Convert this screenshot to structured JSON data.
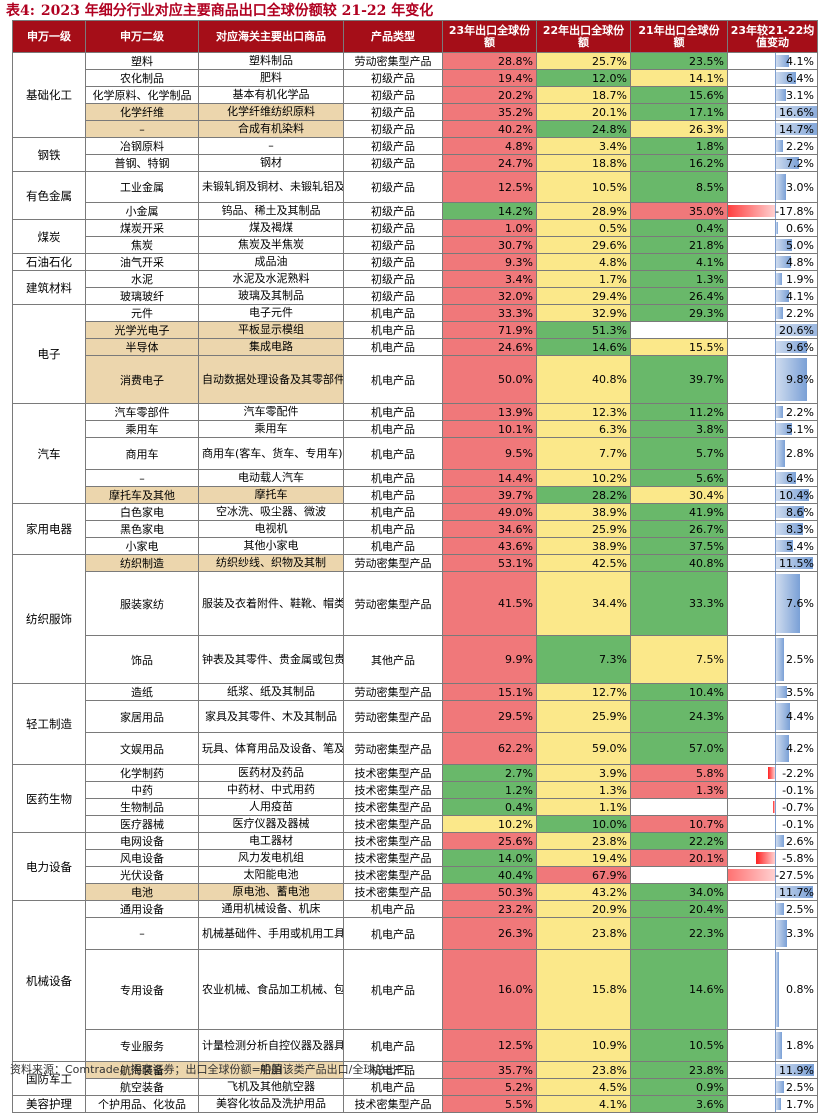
{
  "title": {
    "label": "表4:",
    "text": "2023 年细分行业对应主要商品出口全球份额较 21-22 年变化"
  },
  "headers": [
    "申万一级",
    "申万二级",
    "对应海关主要出口商品",
    "产品类型",
    "23年出口全球份额",
    "22年出口全球份额",
    "21年出口全球份额",
    "23年较21-22均值变动"
  ],
  "colors": {
    "red": "#f0787a",
    "yellow": "#fbe88a",
    "green": "#69b86a",
    "tan": "#ecd6ad",
    "header": "#a50e18",
    "bar_pos": "#7aa0d6",
    "bar_neg": "#ff2020"
  },
  "rows": [
    {
      "l1": "基础化工",
      "l1span": 5,
      "l2": "塑料",
      "cus": "塑料制品",
      "type": "劳动密集型产品",
      "v23": "28.8%",
      "v22": "25.7%",
      "v21": "23.5%",
      "chg": "4.1%",
      "c": 4.1,
      "k": [
        "r",
        "y",
        "g"
      ],
      "h": 17
    },
    {
      "l2": "农化制品",
      "cus": "肥料",
      "type": "初级产品",
      "v23": "19.4%",
      "v22": "12.0%",
      "v21": "14.1%",
      "chg": "6.4%",
      "c": 6.4,
      "k": [
        "r",
        "g",
        "y"
      ],
      "h": 16
    },
    {
      "l2": "化学原料、化学制品",
      "cus": "基本有机化学品",
      "type": "初级产品",
      "v23": "20.2%",
      "v22": "18.7%",
      "v21": "15.6%",
      "chg": "3.1%",
      "c": 3.1,
      "k": [
        "r",
        "y",
        "g"
      ],
      "h": 16
    },
    {
      "l2": "化学纤维",
      "cus": "化学纤维纺织原料",
      "type": "初级产品",
      "v23": "35.2%",
      "v22": "20.1%",
      "v21": "17.1%",
      "chg": "16.6%",
      "c": 16.6,
      "k": [
        "r",
        "y",
        "g"
      ],
      "h": 17,
      "tan": true
    },
    {
      "l2": "–",
      "cus": "合成有机染料",
      "type": "初级产品",
      "v23": "40.2%",
      "v22": "24.8%",
      "v21": "26.3%",
      "chg": "14.7%",
      "c": 14.7,
      "k": [
        "r",
        "g",
        "y"
      ],
      "h": 16,
      "tan": true
    },
    {
      "l1": "钢铁",
      "l1span": 2,
      "l2": "冶钢原料",
      "cus": "–",
      "type": "初级产品",
      "v23": "4.8%",
      "v22": "3.4%",
      "v21": "1.8%",
      "chg": "2.2%",
      "c": 2.2,
      "k": [
        "r",
        "y",
        "g"
      ],
      "h": 16
    },
    {
      "l2": "普钢、特钢",
      "cus": "钢材",
      "type": "初级产品",
      "v23": "24.7%",
      "v22": "18.8%",
      "v21": "16.2%",
      "chg": "7.2%",
      "c": 7.2,
      "k": [
        "r",
        "y",
        "g"
      ],
      "h": 16
    },
    {
      "l1": "有色金属",
      "l1span": 2,
      "l2": "工业金属",
      "cus": "未锻轧铜及铜材、未锻轧铝及铝材",
      "type": "初级产品",
      "v23": "12.5%",
      "v22": "10.5%",
      "v21": "8.5%",
      "chg": "3.0%",
      "c": 3.0,
      "k": [
        "r",
        "y",
        "g"
      ],
      "h": 31
    },
    {
      "l2": "小金属",
      "cus": "钨品、稀土及其制品",
      "type": "初级产品",
      "v23": "14.2%",
      "v22": "28.9%",
      "v21": "35.0%",
      "chg": "-17.8%",
      "c": -17.8,
      "k": [
        "g",
        "y",
        "r"
      ],
      "h": 16
    },
    {
      "l1": "煤炭",
      "l1span": 2,
      "l2": "煤炭开采",
      "cus": "煤及褐煤",
      "type": "初级产品",
      "v23": "1.0%",
      "v22": "0.5%",
      "v21": "0.4%",
      "chg": "0.6%",
      "c": 0.6,
      "k": [
        "r",
        "y",
        "g"
      ],
      "h": 16
    },
    {
      "l2": "焦炭",
      "cus": "焦炭及半焦炭",
      "type": "初级产品",
      "v23": "30.7%",
      "v22": "29.6%",
      "v21": "21.8%",
      "chg": "5.0%",
      "c": 5.0,
      "k": [
        "r",
        "y",
        "g"
      ],
      "h": 16
    },
    {
      "l1": "石油石化",
      "l1span": 1,
      "l2": "油气开采",
      "cus": "成品油",
      "type": "初级产品",
      "v23": "9.3%",
      "v22": "4.8%",
      "v21": "4.1%",
      "chg": "4.8%",
      "c": 4.8,
      "k": [
        "r",
        "y",
        "g"
      ],
      "h": 16
    },
    {
      "l1": "建筑材料",
      "l1span": 2,
      "l2": "水泥",
      "cus": "水泥及水泥熟料",
      "type": "初级产品",
      "v23": "3.4%",
      "v22": "1.7%",
      "v21": "1.3%",
      "chg": "1.9%",
      "c": 1.9,
      "k": [
        "r",
        "y",
        "g"
      ],
      "h": 16
    },
    {
      "l2": "玻璃玻纤",
      "cus": "玻璃及其制品",
      "type": "初级产品",
      "v23": "32.0%",
      "v22": "29.4%",
      "v21": "26.4%",
      "chg": "4.1%",
      "c": 4.1,
      "k": [
        "r",
        "y",
        "g"
      ],
      "h": 16
    },
    {
      "l1": "电子",
      "l1span": 4,
      "l2": "元件",
      "cus": "电子元件",
      "type": "机电产品",
      "v23": "33.3%",
      "v22": "32.9%",
      "v21": "29.3%",
      "chg": "2.2%",
      "c": 2.2,
      "k": [
        "r",
        "y",
        "g"
      ],
      "h": 16
    },
    {
      "l2": "光学光电子",
      "cus": "平板显示模组",
      "type": "机电产品",
      "v23": "71.9%",
      "v22": "51.3%",
      "v21": "",
      "chg": "20.6%",
      "c": 20.6,
      "k": [
        "r",
        "g",
        "w"
      ],
      "h": 16,
      "tan": true
    },
    {
      "l2": "半导体",
      "cus": "集成电路",
      "type": "机电产品",
      "v23": "24.6%",
      "v22": "14.6%",
      "v21": "15.5%",
      "chg": "9.6%",
      "c": 9.6,
      "k": [
        "r",
        "g",
        "y"
      ],
      "h": 16,
      "tan": true
    },
    {
      "l2": "消费电子",
      "cus": "自动数据处理设备及其零部件、手机、音视频设备及其零件",
      "type": "机电产品",
      "v23": "50.0%",
      "v22": "40.8%",
      "v21": "39.7%",
      "chg": "9.8%",
      "c": 9.8,
      "k": [
        "r",
        "y",
        "g"
      ],
      "h": 48,
      "tan": true
    },
    {
      "l1": "汽车",
      "l1span": 5,
      "l2": "汽车零部件",
      "cus": "汽车零配件",
      "type": "机电产品",
      "v23": "13.9%",
      "v22": "12.3%",
      "v21": "11.2%",
      "chg": "2.2%",
      "c": 2.2,
      "k": [
        "r",
        "y",
        "g"
      ],
      "h": 16
    },
    {
      "l2": "乘用车",
      "cus": "乘用车",
      "type": "机电产品",
      "v23": "10.1%",
      "v22": "6.3%",
      "v21": "3.8%",
      "chg": "5.1%",
      "c": 5.1,
      "k": [
        "r",
        "y",
        "g"
      ],
      "h": 16
    },
    {
      "l2": "商用车",
      "cus": "商用车(客车、货车、专用车)",
      "type": "机电产品",
      "v23": "9.5%",
      "v22": "7.7%",
      "v21": "5.7%",
      "chg": "2.8%",
      "c": 2.8,
      "k": [
        "r",
        "y",
        "g"
      ],
      "h": 32
    },
    {
      "l2": "–",
      "cus": "电动载人汽车",
      "type": "机电产品",
      "v23": "14.4%",
      "v22": "10.2%",
      "v21": "5.6%",
      "chg": "6.4%",
      "c": 6.4,
      "k": [
        "r",
        "y",
        "g"
      ],
      "h": 16
    },
    {
      "l2": "摩托车及其他",
      "cus": "摩托车",
      "type": "机电产品",
      "v23": "39.7%",
      "v22": "28.2%",
      "v21": "30.4%",
      "chg": "10.4%",
      "c": 10.4,
      "k": [
        "r",
        "g",
        "y"
      ],
      "h": 16,
      "tan": true
    },
    {
      "l1": "家用电器",
      "l1span": 3,
      "l2": "白色家电",
      "cus": "空冰洗、吸尘器、微波",
      "type": "机电产品",
      "v23": "49.0%",
      "v22": "38.9%",
      "v21": "41.9%",
      "chg": "8.6%",
      "c": 8.6,
      "k": [
        "r",
        "y",
        "g"
      ],
      "h": 16
    },
    {
      "l2": "黑色家电",
      "cus": "电视机",
      "type": "机电产品",
      "v23": "34.6%",
      "v22": "25.9%",
      "v21": "26.7%",
      "chg": "8.3%",
      "c": 8.3,
      "k": [
        "r",
        "y",
        "g"
      ],
      "h": 16
    },
    {
      "l2": "小家电",
      "cus": "其他小家电",
      "type": "机电产品",
      "v23": "43.6%",
      "v22": "38.9%",
      "v21": "37.5%",
      "chg": "5.4%",
      "c": 5.4,
      "k": [
        "r",
        "y",
        "g"
      ],
      "h": 16
    },
    {
      "l1": "纺织服饰",
      "l1span": 3,
      "l2": "纺织制造",
      "cus": "纺织纱线、织物及其制",
      "type": "劳动密集型产品",
      "v23": "53.1%",
      "v22": "42.5%",
      "v21": "40.8%",
      "chg": "11.5%",
      "c": 11.5,
      "k": [
        "r",
        "y",
        "g"
      ],
      "h": 16,
      "tan": true
    },
    {
      "l2": "服装家纺",
      "cus": "服装及衣着附件、鞋靴、帽类、皮革毛皮及其制品、箱包及类似容器",
      "type": "劳动密集型产品",
      "v23": "41.5%",
      "v22": "34.4%",
      "v21": "33.3%",
      "chg": "7.6%",
      "c": 7.6,
      "k": [
        "r",
        "y",
        "g"
      ],
      "h": 64
    },
    {
      "l2": "饰品",
      "cus": "钟表及其零件、贵金属或包贵金属的首饰、珍珠、宝石及半宝石",
      "type": "其他产品",
      "v23": "9.9%",
      "v22": "7.3%",
      "v21": "7.5%",
      "chg": "2.5%",
      "c": 2.5,
      "k": [
        "r",
        "g",
        "y"
      ],
      "h": 48
    },
    {
      "l1": "轻工制造",
      "l1span": 3,
      "l2": "造纸",
      "cus": "纸浆、纸及其制品",
      "type": "劳动密集型产品",
      "v23": "15.1%",
      "v22": "12.7%",
      "v21": "10.4%",
      "chg": "3.5%",
      "c": 3.5,
      "k": [
        "r",
        "y",
        "g"
      ],
      "h": 16
    },
    {
      "l2": "家居用品",
      "cus": "家具及其零件、木及其制品",
      "type": "劳动密集型产品",
      "v23": "29.5%",
      "v22": "25.9%",
      "v21": "24.3%",
      "chg": "4.4%",
      "c": 4.4,
      "k": [
        "r",
        "y",
        "g"
      ],
      "h": 32
    },
    {
      "l2": "文娱用品",
      "cus": "玩具、体育用品及设备、笔及其零件",
      "type": "劳动密集型产品",
      "v23": "62.2%",
      "v22": "59.0%",
      "v21": "57.0%",
      "chg": "4.2%",
      "c": 4.2,
      "k": [
        "r",
        "y",
        "g"
      ],
      "h": 32
    },
    {
      "l1": "医药生物",
      "l1span": 4,
      "l2": "化学制药",
      "cus": "医药材及药品",
      "type": "技术密集型产品",
      "v23": "2.7%",
      "v22": "3.9%",
      "v21": "5.8%",
      "chg": "-2.2%",
      "c": -2.2,
      "k": [
        "g",
        "y",
        "r"
      ],
      "h": 16
    },
    {
      "l2": "中药",
      "cus": "中药材、中式用药",
      "type": "技术密集型产品",
      "v23": "1.2%",
      "v22": "1.3%",
      "v21": "1.3%",
      "chg": "-0.1%",
      "c": -0.1,
      "k": [
        "g",
        "y",
        "r"
      ],
      "h": 16
    },
    {
      "l2": "生物制品",
      "cus": "人用疫苗",
      "type": "技术密集型产品",
      "v23": "0.4%",
      "v22": "1.1%",
      "v21": "",
      "chg": "-0.7%",
      "c": -0.7,
      "k": [
        "g",
        "y",
        "w"
      ],
      "h": 16
    },
    {
      "l2": "医疗器械",
      "cus": "医疗仪器及器械",
      "type": "技术密集型产品",
      "v23": "10.2%",
      "v22": "10.0%",
      "v21": "10.7%",
      "chg": "-0.1%",
      "c": -0.1,
      "k": [
        "y",
        "g",
        "r"
      ],
      "h": 16
    },
    {
      "l1": "电力设备",
      "l1span": 4,
      "l2": "电网设备",
      "cus": "电工器材",
      "type": "技术密集型产品",
      "v23": "25.6%",
      "v22": "23.8%",
      "v21": "22.2%",
      "chg": "2.6%",
      "c": 2.6,
      "k": [
        "r",
        "y",
        "g"
      ],
      "h": 16
    },
    {
      "l2": "风电设备",
      "cus": "风力发电机组",
      "type": "技术密集型产品",
      "v23": "14.0%",
      "v22": "19.4%",
      "v21": "20.1%",
      "chg": "-5.8%",
      "c": -5.8,
      "k": [
        "g",
        "y",
        "r"
      ],
      "h": 16
    },
    {
      "l2": "光伏设备",
      "cus": "太阳能电池",
      "type": "技术密集型产品",
      "v23": "40.4%",
      "v22": "67.9%",
      "v21": "",
      "chg": "-27.5%",
      "c": -27.5,
      "k": [
        "g",
        "r",
        "w"
      ],
      "h": 16
    },
    {
      "l2": "电池",
      "cus": "原电池、蓄电池",
      "type": "技术密集型产品",
      "v23": "50.3%",
      "v22": "43.2%",
      "v21": "34.0%",
      "chg": "11.7%",
      "c": 11.7,
      "k": [
        "r",
        "y",
        "g"
      ],
      "h": 16,
      "tan": true
    },
    {
      "l1": "机械设备",
      "l1span": 4,
      "l2": "通用设备",
      "cus": "通用机械设备、机床",
      "type": "机电产品",
      "v23": "23.2%",
      "v22": "20.9%",
      "v21": "20.4%",
      "chg": "2.5%",
      "c": 2.5,
      "k": [
        "r",
        "y",
        "g"
      ],
      "h": 16
    },
    {
      "l2": "–",
      "cus": "机械基础件、手用或机用工具、机床",
      "type": "机电产品",
      "v23": "26.3%",
      "v22": "23.8%",
      "v21": "22.3%",
      "chg": "3.3%",
      "c": 3.3,
      "k": [
        "r",
        "y",
        "g"
      ],
      "h": 32
    },
    {
      "l2": "专用设备",
      "cus": "农业机械、食品加工机械、包装机械、印刷装订机械及其零件、纺织机械及其零件、缝制机械及其零件",
      "type": "机电产品",
      "v23": "16.0%",
      "v22": "15.8%",
      "v21": "14.6%",
      "chg": "0.8%",
      "c": 0.8,
      "k": [
        "r",
        "y",
        "g"
      ],
      "h": 80
    },
    {
      "l2": "专业服务",
      "cus": "计量检测分析自控仪器及器具",
      "type": "机电产品",
      "v23": "12.5%",
      "v22": "10.9%",
      "v21": "10.5%",
      "chg": "1.8%",
      "c": 1.8,
      "k": [
        "r",
        "y",
        "g"
      ],
      "h": 32
    },
    {
      "l1": "国防军工",
      "l1span": 2,
      "l2": "航海装备",
      "cus": "船舶",
      "type": "机电产品",
      "v23": "35.7%",
      "v22": "23.8%",
      "v21": "23.8%",
      "chg": "11.9%",
      "c": 11.9,
      "k": [
        "r",
        "y",
        "g"
      ],
      "h": 16,
      "tan": true
    },
    {
      "l2": "航空装备",
      "cus": "飞机及其他航空器",
      "type": "机电产品",
      "v23": "5.2%",
      "v22": "4.5%",
      "v21": "0.9%",
      "chg": "2.5%",
      "c": 2.5,
      "k": [
        "r",
        "y",
        "g"
      ],
      "h": 16
    },
    {
      "l1": "美容护理",
      "l1span": 1,
      "l2": "个护用品、化妆品",
      "cus": "美容化妆品及洗护用品",
      "type": "技术密集型产品",
      "v23": "5.5%",
      "v22": "4.1%",
      "v21": "3.6%",
      "chg": "1.7%",
      "c": 1.7,
      "k": [
        "r",
        "y",
        "g"
      ],
      "h": 16
    }
  ],
  "source": "资料来源：Comtrade、招商证券；出口全球份额=中国该类产品出口/全球总出口"
}
